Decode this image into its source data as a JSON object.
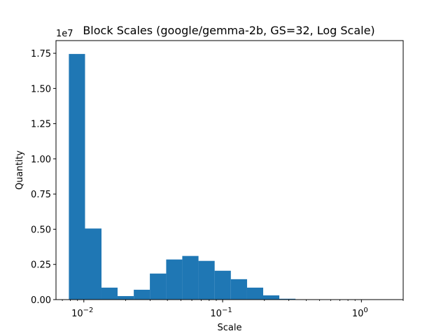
{
  "chart_data": {
    "type": "bar",
    "title": "Block Scales (google/gemma-2b, GS=32, Log Scale)",
    "xlabel": "Scale",
    "ylabel": "Quantity",
    "y_multiplier_label": "1e7",
    "x_scale": "log",
    "xlim": [
      0.0063,
      2.0
    ],
    "ylim": [
      0,
      1.84
    ],
    "y_unit_multiplier": 10000000,
    "y_ticks": [
      0.0,
      0.25,
      0.5,
      0.75,
      1.0,
      1.25,
      1.5,
      1.75
    ],
    "y_tick_labels": [
      "0.00",
      "0.25",
      "0.50",
      "0.75",
      "1.00",
      "1.25",
      "1.50",
      "1.75"
    ],
    "x_ticks": [
      0.01,
      0.1,
      1
    ],
    "x_tick_labels": [
      {
        "base": "10",
        "exp": "−2"
      },
      {
        "base": "10",
        "exp": "−1"
      },
      {
        "base": "10",
        "exp": "0"
      }
    ],
    "bar_color": "#1f77b4",
    "bins": [
      {
        "x0": 0.0078,
        "x1": 0.0102,
        "value": 1.745
      },
      {
        "x0": 0.0102,
        "x1": 0.0134,
        "value": 0.505
      },
      {
        "x0": 0.0134,
        "x1": 0.0175,
        "value": 0.085
      },
      {
        "x0": 0.0175,
        "x1": 0.0229,
        "value": 0.025
      },
      {
        "x0": 0.0229,
        "x1": 0.0299,
        "value": 0.07
      },
      {
        "x0": 0.0299,
        "x1": 0.0392,
        "value": 0.185
      },
      {
        "x0": 0.0392,
        "x1": 0.0512,
        "value": 0.285
      },
      {
        "x0": 0.0512,
        "x1": 0.067,
        "value": 0.31
      },
      {
        "x0": 0.067,
        "x1": 0.0876,
        "value": 0.275
      },
      {
        "x0": 0.0876,
        "x1": 0.1146,
        "value": 0.205
      },
      {
        "x0": 0.1146,
        "x1": 0.15,
        "value": 0.145
      },
      {
        "x0": 0.15,
        "x1": 0.196,
        "value": 0.085
      },
      {
        "x0": 0.196,
        "x1": 0.256,
        "value": 0.03
      },
      {
        "x0": 0.256,
        "x1": 0.335,
        "value": 0.006
      },
      {
        "x0": 0.335,
        "x1": 0.438,
        "value": 0.001
      },
      {
        "x0": 0.438,
        "x1": 0.573,
        "value": 0.0003
      },
      {
        "x0": 0.573,
        "x1": 0.75,
        "value": 0.0001
      },
      {
        "x0": 0.75,
        "x1": 0.981,
        "value": 5e-05
      },
      {
        "x0": 0.981,
        "x1": 1.283,
        "value": 3e-05
      },
      {
        "x0": 1.283,
        "x1": 1.678,
        "value": 2e-05
      }
    ]
  }
}
